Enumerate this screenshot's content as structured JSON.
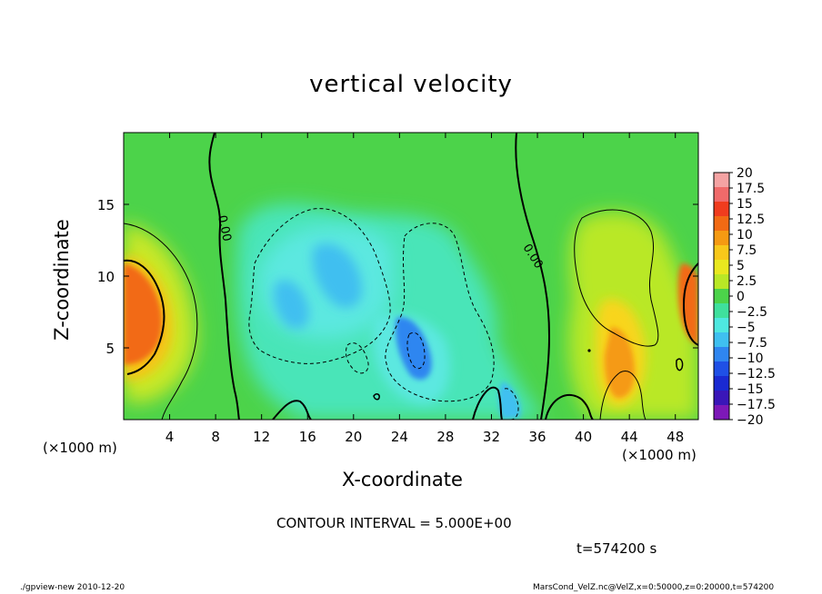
{
  "chart_data": {
    "type": "heatmap",
    "title": "vertical velocity",
    "xlabel": "X-coordinate",
    "ylabel": "Z-coordinate",
    "x_unit": "(×1000 m)",
    "xlim": [
      0,
      50
    ],
    "ylim": [
      0,
      20
    ],
    "x_ticks": [
      4,
      8,
      12,
      16,
      20,
      24,
      28,
      32,
      36,
      40,
      44,
      48
    ],
    "y_ticks": [
      5,
      10,
      15
    ],
    "colorbar": {
      "levels": [
        "20",
        "17.5",
        "15",
        "12.5",
        "10",
        "7.5",
        "5",
        "2.5",
        "0",
        "−2.5",
        "−5",
        "−7.5",
        "−10",
        "−12.5",
        "−15",
        "−17.5",
        "−20"
      ],
      "colors": [
        "#f4a3a3",
        "#f06a6a",
        "#f03c1e",
        "#f26a14",
        "#f59a12",
        "#f8c81a",
        "#e9e81f",
        "#b9e826",
        "#4cd34a",
        "#3fe09d",
        "#4ee8e0",
        "#3fc0f0",
        "#2f86f0",
        "#1f50e6",
        "#1a2ad2",
        "#3a16b8",
        "#7d18b8"
      ]
    },
    "contour_interval": "CONTOUR INTERVAL = 5.000E+00",
    "contour_label": "0.00",
    "time": "t=574200 s",
    "grid": false
  },
  "footer": {
    "left": "./gpview-new  2010-12-20",
    "right": "MarsCond_VelZ.nc@VelZ,x=0:50000,z=0:20000,t=574200"
  }
}
